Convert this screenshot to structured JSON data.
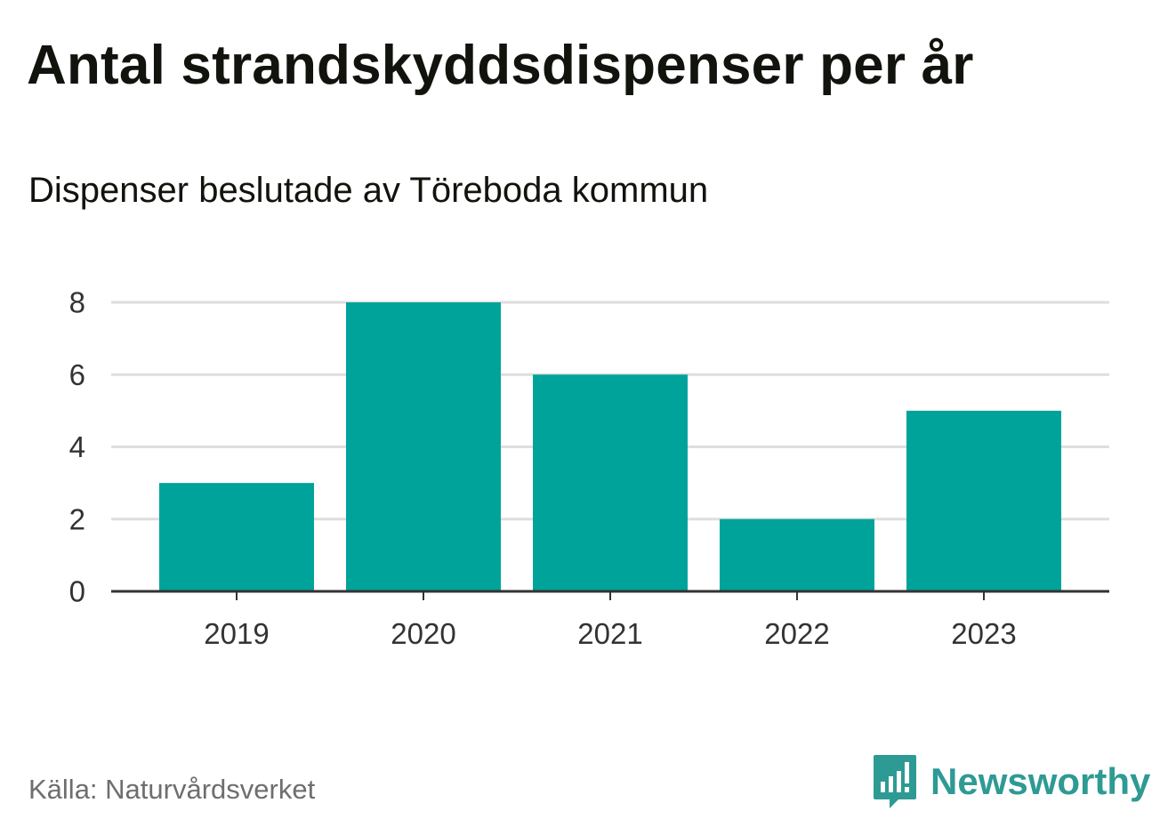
{
  "header": {
    "title": "Antal strandskyddsdispenser per år",
    "subtitle": "Dispenser beslutade av Töreboda kommun"
  },
  "footer": {
    "source": "Källa: Naturvårdsverket",
    "brand_name": "Newsworthy"
  },
  "colors": {
    "bar": "#00a39a",
    "grid": "#dedede",
    "axis": "#333333",
    "tick_text": "#333333",
    "brand": "#2e9a94"
  },
  "icons": {
    "brand_logo": "newsworthy-logo-icon"
  },
  "chart_data": {
    "type": "bar",
    "title": "Antal strandskyddsdispenser per år",
    "subtitle": "Dispenser beslutade av Töreboda kommun",
    "categories": [
      "2019",
      "2020",
      "2021",
      "2022",
      "2023"
    ],
    "values": [
      3,
      8,
      6,
      2,
      5
    ],
    "ylim": [
      0,
      8
    ],
    "yticks": [
      0,
      2,
      4,
      6,
      8
    ],
    "xlabel": "",
    "ylabel": "",
    "grid": true,
    "legend": "none"
  }
}
